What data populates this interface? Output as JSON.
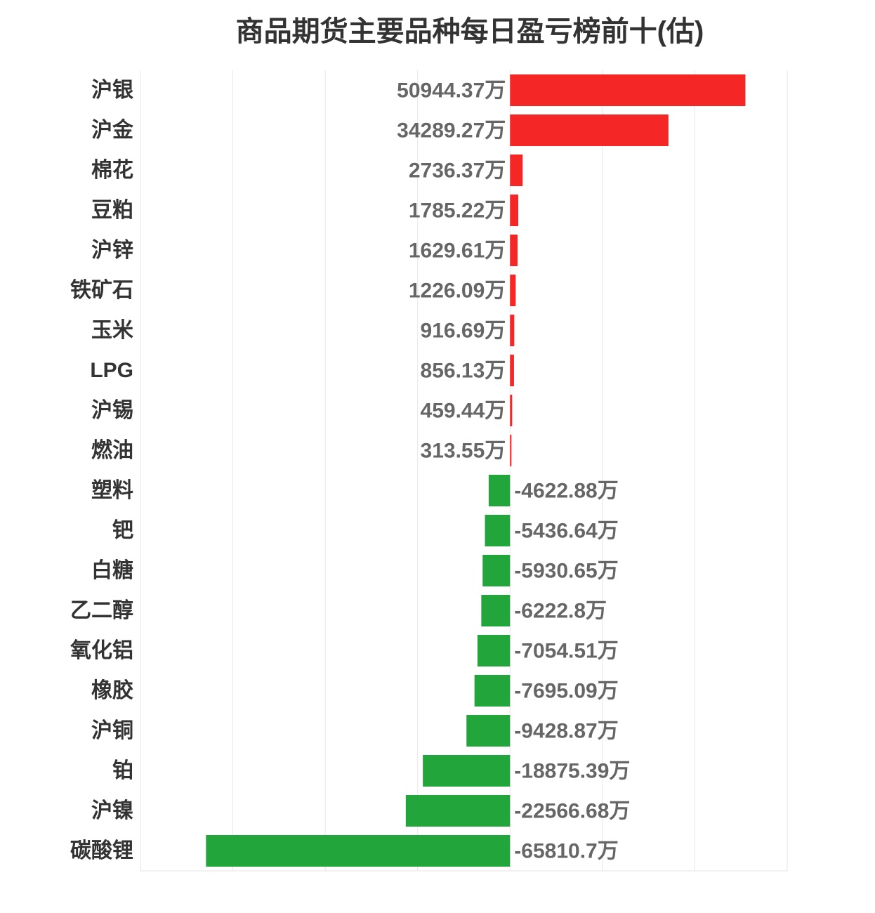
{
  "chart_data": {
    "type": "bar",
    "orientation": "horizontal",
    "title": "商品期货主要品种每日盈亏榜前十(估)",
    "categories": [
      "沪银",
      "沪金",
      "棉花",
      "豆粕",
      "沪锌",
      "铁矿石",
      "玉米",
      "LPG",
      "沪锡",
      "燃油",
      "塑料",
      "钯",
      "白糖",
      "乙二醇",
      "氧化铝",
      "橡胶",
      "沪铜",
      "铂",
      "沪镍",
      "碳酸锂"
    ],
    "values": [
      50944.37,
      34289.27,
      2736.37,
      1785.22,
      1629.61,
      1226.09,
      916.69,
      856.13,
      459.44,
      313.55,
      -4622.88,
      -5436.64,
      -5930.65,
      -6222.8,
      -7054.51,
      -7695.09,
      -9428.87,
      -18875.39,
      -22566.68,
      -65810.7
    ],
    "value_suffix": "万",
    "xlim": [
      -80000,
      60000
    ],
    "grid": true,
    "colors": {
      "positive": "#f52626",
      "negative": "#22a63c"
    }
  }
}
